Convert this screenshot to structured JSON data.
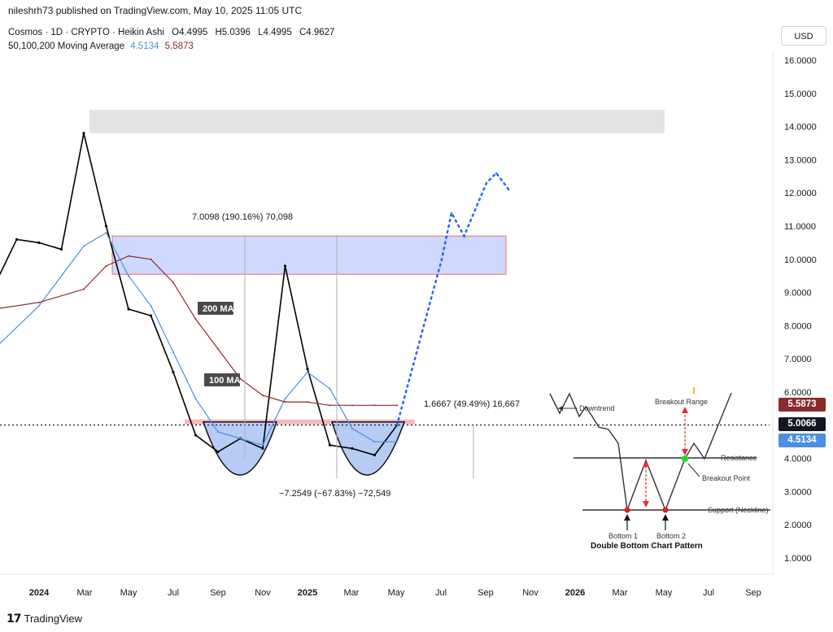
{
  "header": {
    "publisher": "nileshrh73 published on TradingView.com, May 10, 2025 11:05 UTC"
  },
  "symbol": {
    "title": "Cosmos · 1D · CRYPTO · Heikin Ashi",
    "open": "O4.4995",
    "high": "H5.0396",
    "low": "L4.4995",
    "close": "C4.9627"
  },
  "indicator": {
    "label": "50,100,200 Moving Average",
    "ma100_value": "4.5134",
    "ma200_value": "5.5873"
  },
  "currency_button": "USD",
  "price_badges": {
    "ma200": {
      "label": "5.5873",
      "color": "#8b2a2a"
    },
    "last": {
      "label": "5.0066",
      "color": "#131722"
    },
    "ma100": {
      "label": "4.5134",
      "color": "#4a90e2"
    }
  },
  "annotations": {
    "up_move": "7.0098 (190.16%) 70,098",
    "down_move": "−7.2549 (−67.83%) −72,549",
    "small_move": "1.6667 (49.49%) 16,667",
    "ma200_label": "200 MA",
    "ma100_label": "100 MA"
  },
  "inset": {
    "title": "Double Bottom Chart Pattern",
    "downtrend": "Downtrend",
    "breakout_range": "Breakout Range",
    "resistance": "Resistance",
    "breakout_point": "Breakout Point",
    "support": "Support (Neckline)",
    "bottom1": "Bottom 1",
    "bottom2": "Bottom 2"
  },
  "footer": {
    "brand": "TradingView"
  },
  "colors": {
    "price": "#000000",
    "ma100": "#4a90e2",
    "ma200": "#8b2a2a",
    "range_box": "#cdd9ff",
    "range_border": "#f08080",
    "projection": "#2962ff",
    "bottom_fill": "#b7cbf5"
  },
  "chart_data": {
    "type": "line",
    "y_axis": {
      "ticks": [
        "16.0000",
        "15.0000",
        "14.0000",
        "13.0000",
        "12.0000",
        "11.0000",
        "10.0000",
        "9.0000",
        "8.0000",
        "7.0000",
        "6.0000",
        "5.0000",
        "4.0000",
        "3.0000",
        "2.0000",
        "1.0000"
      ],
      "ylim": [
        0.6,
        16.5
      ],
      "position": "right"
    },
    "x_axis": {
      "ticks": [
        "2024",
        "Mar",
        "May",
        "Jul",
        "Sep",
        "Nov",
        "2025",
        "Mar",
        "May",
        "Jul",
        "Sep",
        "Nov",
        "2026",
        "Mar",
        "May",
        "Jul",
        "Sep"
      ],
      "bold_ticks": [
        "2024",
        "2025",
        "2026"
      ]
    },
    "series": [
      {
        "key": "price",
        "x": [
          "2023-11",
          "2023-12",
          "2024-01",
          "2024-02",
          "2024-03",
          "2024-04",
          "2024-05",
          "2024-06",
          "2024-07",
          "2024-08",
          "2024-09",
          "2024-10",
          "2024-11",
          "2024-12",
          "2025-01",
          "2025-02",
          "2025-03",
          "2025-04",
          "2025-05"
        ],
        "values": [
          9.2,
          10.6,
          10.5,
          10.3,
          13.8,
          11.0,
          8.5,
          8.3,
          6.6,
          4.7,
          4.2,
          4.6,
          4.3,
          9.8,
          6.7,
          4.4,
          4.3,
          4.1,
          5.0
        ]
      },
      {
        "key": "ma100",
        "x": [
          "2023-11",
          "2024-01",
          "2024-03",
          "2024-04",
          "2024-05",
          "2024-06",
          "2024-07",
          "2024-08",
          "2024-09",
          "2024-10",
          "2024-11",
          "2024-12",
          "2025-01",
          "2025-02",
          "2025-03",
          "2025-04",
          "2025-05"
        ],
        "values": [
          7.3,
          8.6,
          10.4,
          10.8,
          9.5,
          8.6,
          7.2,
          5.8,
          4.8,
          4.6,
          4.4,
          5.8,
          6.6,
          6.1,
          4.9,
          4.5,
          4.5
        ]
      },
      {
        "key": "ma200",
        "x": [
          "2023-11",
          "2024-01",
          "2024-03",
          "2024-04",
          "2024-05",
          "2024-06",
          "2024-07",
          "2024-08",
          "2024-09",
          "2024-10",
          "2024-11",
          "2024-12",
          "2025-01",
          "2025-02",
          "2025-03",
          "2025-04",
          "2025-05"
        ],
        "values": [
          8.5,
          8.7,
          9.1,
          9.8,
          10.1,
          10.0,
          9.3,
          8.2,
          7.3,
          6.4,
          5.9,
          5.7,
          5.7,
          5.6,
          5.6,
          5.6,
          5.6
        ]
      },
      {
        "key": "projection",
        "x": [
          "2025-05",
          "2025-06",
          "2025-07",
          "2025-07",
          "2025-08",
          "2025-09",
          "2025-09",
          "2025-10"
        ],
        "values": [
          5.0,
          7.5,
          10.0,
          11.4,
          10.7,
          12.3,
          12.6,
          12.1
        ]
      }
    ],
    "zones": {
      "resistance_zone": [
        9.55,
        10.7
      ],
      "top_zone": [
        13.8,
        14.5
      ],
      "support_line": 5.1,
      "last_price": 5.0066
    },
    "grid": false
  }
}
